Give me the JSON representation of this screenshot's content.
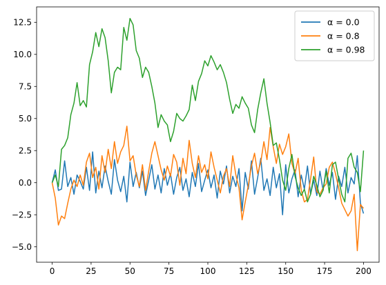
{
  "chart_data": {
    "type": "line",
    "title": "",
    "xlabel": "",
    "ylabel": "",
    "xlim": [
      -10,
      210
    ],
    "ylim": [
      -6.2,
      13.7
    ],
    "x_ticks": [
      0,
      25,
      50,
      75,
      100,
      125,
      150,
      175,
      200
    ],
    "y_ticks": [
      -5.0,
      -2.5,
      0.0,
      2.5,
      5.0,
      7.5,
      10.0,
      12.5
    ],
    "y_tick_labels": [
      "−5.0",
      "−2.5",
      "0.0",
      "2.5",
      "5.0",
      "7.5",
      "10.0",
      "12.5"
    ],
    "grid": false,
    "legend_position": "top-right",
    "series": [
      {
        "name": "α = 0.0",
        "color": "#1f77b4",
        "x": [
          0,
          2,
          4,
          6,
          8,
          10,
          12,
          14,
          16,
          18,
          20,
          22,
          24,
          26,
          28,
          30,
          32,
          34,
          36,
          38,
          40,
          42,
          44,
          46,
          48,
          50,
          52,
          54,
          56,
          58,
          60,
          62,
          64,
          66,
          68,
          70,
          72,
          74,
          76,
          78,
          80,
          82,
          84,
          86,
          88,
          90,
          92,
          94,
          96,
          98,
          100,
          102,
          104,
          106,
          108,
          110,
          112,
          114,
          116,
          118,
          120,
          122,
          124,
          126,
          128,
          130,
          132,
          134,
          136,
          138,
          140,
          142,
          144,
          146,
          148,
          150,
          152,
          154,
          156,
          158,
          160,
          162,
          164,
          166,
          168,
          170,
          172,
          174,
          176,
          178,
          180,
          182,
          184,
          186,
          188,
          190,
          192,
          194,
          196,
          198,
          200
        ],
        "y": [
          0.0,
          1.0,
          -0.6,
          -0.5,
          1.7,
          -0.3,
          0.4,
          -0.9,
          0.6,
          0.1,
          -0.5,
          1.2,
          -0.6,
          2.4,
          -0.8,
          0.9,
          -0.4,
          1.3,
          0.1,
          -0.9,
          1.8,
          0.2,
          -0.7,
          0.5,
          -1.5,
          1.6,
          -0.3,
          0.8,
          -0.4,
          0.9,
          -1.0,
          0.2,
          1.4,
          -0.5,
          0.6,
          -0.8,
          1.1,
          -0.2,
          0.7,
          -0.9,
          0.4,
          1.2,
          -0.6,
          0.3,
          -1.1,
          0.8,
          -0.3,
          1.5,
          -0.7,
          0.2,
          1.0,
          -0.4,
          0.6,
          -1.2,
          0.9,
          -0.1,
          1.3,
          -0.8,
          0.5,
          -0.3,
          1.1,
          -2.2,
          0.8,
          -0.5,
          1.7,
          -0.9,
          0.4,
          1.9,
          -0.6,
          0.3,
          -1.0,
          1.2,
          -0.4,
          0.7,
          -2.5,
          1.4,
          -0.8,
          0.3,
          1.0,
          -1.1,
          0.6,
          -0.5,
          1.3,
          -0.9,
          0.2,
          -1.0,
          0.9,
          -0.6,
          1.1,
          -0.2,
          0.8,
          -1.3,
          0.5,
          -0.3,
          1.2,
          -0.8,
          0.4,
          -0.1,
          2.1,
          -1.6,
          -2.4
        ]
      },
      {
        "name": "α = 0.8",
        "color": "#ff7f0e",
        "x": [
          0,
          2,
          4,
          6,
          8,
          10,
          12,
          14,
          16,
          18,
          20,
          22,
          24,
          26,
          28,
          30,
          32,
          34,
          36,
          38,
          40,
          42,
          44,
          46,
          48,
          50,
          52,
          54,
          56,
          58,
          60,
          62,
          64,
          66,
          68,
          70,
          72,
          74,
          76,
          78,
          80,
          82,
          84,
          86,
          88,
          90,
          92,
          94,
          96,
          98,
          100,
          102,
          104,
          106,
          108,
          110,
          112,
          114,
          116,
          118,
          120,
          122,
          124,
          126,
          128,
          130,
          132,
          134,
          136,
          138,
          140,
          142,
          144,
          146,
          148,
          150,
          152,
          154,
          156,
          158,
          160,
          162,
          164,
          166,
          168,
          170,
          172,
          174,
          176,
          178,
          180,
          182,
          184,
          186,
          188,
          190,
          192,
          194,
          196,
          198,
          200
        ],
        "y": [
          0.0,
          -1.2,
          -3.3,
          -2.6,
          -2.8,
          -1.6,
          -0.5,
          0.2,
          -0.3,
          0.6,
          -0.2,
          1.6,
          2.3,
          0.4,
          1.2,
          -0.5,
          2.1,
          0.8,
          2.6,
          1.1,
          3.2,
          1.5,
          2.4,
          2.9,
          4.4,
          1.7,
          2.1,
          0.6,
          -0.3,
          1.4,
          -0.6,
          0.9,
          2.3,
          3.2,
          2.1,
          1.0,
          0.2,
          1.3,
          0.5,
          2.2,
          1.6,
          -0.2,
          1.9,
          0.7,
          3.3,
          1.5,
          0.4,
          2.1,
          0.8,
          1.4,
          0.3,
          2.4,
          1.2,
          0.2,
          -0.8,
          0.5,
          1.1,
          -0.3,
          2.1,
          0.6,
          -0.4,
          -2.9,
          -1.5,
          -0.2,
          1.3,
          2.3,
          0.7,
          1.6,
          3.2,
          1.8,
          4.3,
          2.8,
          1.5,
          3.0,
          2.2,
          2.8,
          3.8,
          1.5,
          0.7,
          1.9,
          -0.6,
          -1.5,
          -1.3,
          0.3,
          2.0,
          -0.7,
          -0.9,
          -0.4,
          -0.1,
          1.2,
          1.6,
          0.7,
          -0.4,
          -1.6,
          -2.1,
          -2.6,
          -2.2,
          -0.9,
          -5.3,
          -1.7,
          -2.0
        ]
      },
      {
        "name": "α = 0.98",
        "color": "#2ca02c",
        "x": [
          0,
          2,
          4,
          6,
          8,
          10,
          12,
          14,
          16,
          18,
          20,
          22,
          24,
          26,
          28,
          30,
          32,
          34,
          36,
          38,
          40,
          42,
          44,
          46,
          48,
          50,
          52,
          54,
          56,
          58,
          60,
          62,
          64,
          66,
          68,
          70,
          72,
          74,
          76,
          78,
          80,
          82,
          84,
          86,
          88,
          90,
          92,
          94,
          96,
          98,
          100,
          102,
          104,
          106,
          108,
          110,
          112,
          114,
          116,
          118,
          120,
          122,
          124,
          126,
          128,
          130,
          132,
          134,
          136,
          138,
          140,
          142,
          144,
          146,
          148,
          150,
          152,
          154,
          156,
          158,
          160,
          162,
          164,
          166,
          168,
          170,
          172,
          174,
          176,
          178,
          180,
          182,
          184,
          186,
          188,
          190,
          192,
          194,
          196,
          198,
          200
        ],
        "y": [
          0.0,
          0.6,
          -0.3,
          2.6,
          2.9,
          3.5,
          5.3,
          6.2,
          7.8,
          6.0,
          6.4,
          5.9,
          9.2,
          10.2,
          11.7,
          10.6,
          12.0,
          11.3,
          9.5,
          7.0,
          8.6,
          9.0,
          8.8,
          12.1,
          11.1,
          12.8,
          12.3,
          10.3,
          9.7,
          8.2,
          9.0,
          8.6,
          7.5,
          6.2,
          4.3,
          5.3,
          4.8,
          4.5,
          3.2,
          4.0,
          5.4,
          5.0,
          4.8,
          5.2,
          5.7,
          7.6,
          6.4,
          7.9,
          8.5,
          9.5,
          9.1,
          9.9,
          9.4,
          8.8,
          9.2,
          8.6,
          7.8,
          6.5,
          5.4,
          6.1,
          5.8,
          6.7,
          6.2,
          5.8,
          4.5,
          3.9,
          5.7,
          7.0,
          8.1,
          6.2,
          4.7,
          2.9,
          3.1,
          1.8,
          0.2,
          -0.6,
          1.1,
          2.2,
          0.5,
          -0.4,
          -1.0,
          -0.5,
          -1.5,
          -0.9,
          0.5,
          -0.2,
          -1.1,
          -0.6,
          0.9,
          -0.8,
          1.4,
          1.6,
          0.3,
          -0.9,
          -1.5,
          1.9,
          2.3,
          1.2,
          0.8,
          -0.7,
          2.5
        ]
      }
    ]
  }
}
